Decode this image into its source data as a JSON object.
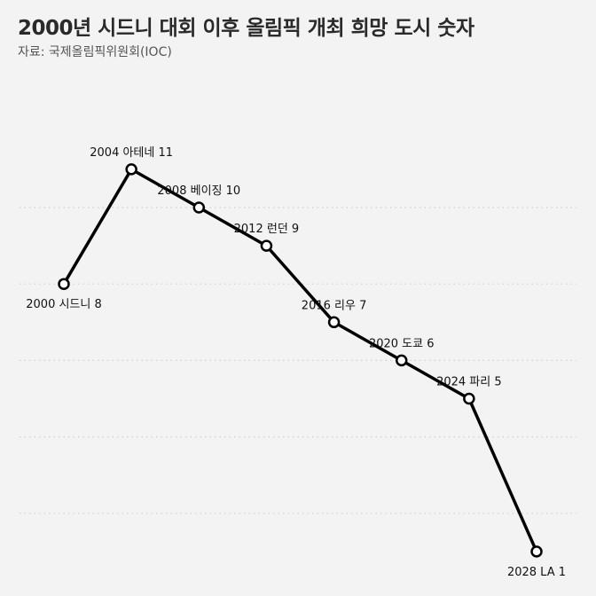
{
  "chart_data": {
    "type": "line",
    "title": "2000년 시드니 대회 이후 올림픽 개최 희망 도시 숫자",
    "subtitle": "자료: 국제올림픽위원회(IOC)",
    "xlabel": "",
    "ylabel": "",
    "ylim": [
      0,
      10.5
    ],
    "grid": true,
    "x": [
      2000,
      2004,
      2008,
      2012,
      2016,
      2020,
      2024,
      2028
    ],
    "values": [
      8,
      11,
      10,
      9,
      7,
      6,
      5,
      1
    ],
    "labels": [
      "2000 시드니 8",
      "2004 아테네 11",
      "2008 베이징 10",
      "2012 런던 9",
      "2016 리우 7",
      "2020 도쿄 6",
      "2024 파리 5",
      "2028 LA 1"
    ],
    "label_side": [
      "below",
      "above",
      "above",
      "above",
      "above",
      "above",
      "above",
      "below"
    ],
    "colors": {
      "line": "#000000",
      "marker_fill": "#ffffff",
      "grid": "#cfcfcf",
      "background": "#f3f3f3"
    }
  }
}
